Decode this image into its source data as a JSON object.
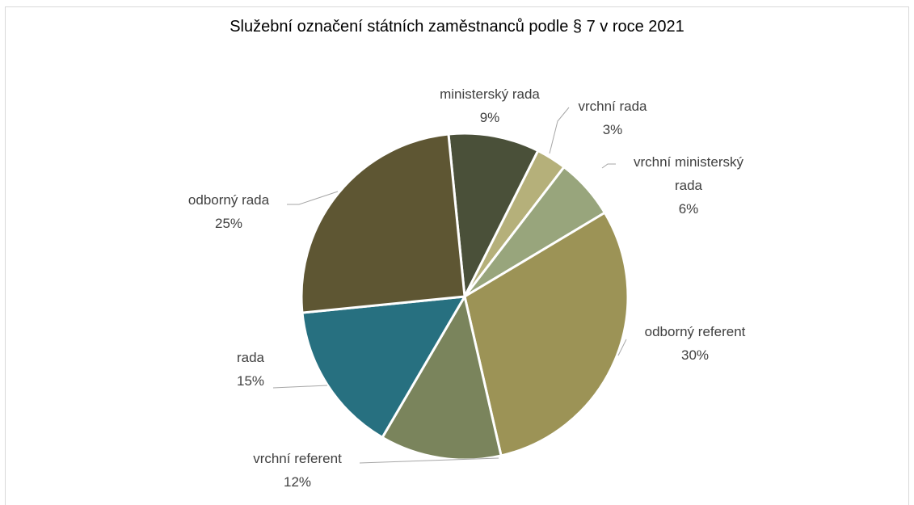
{
  "chart_data": {
    "type": "pie",
    "title": "Služební označení státních zaměstnanců podle § 7 v roce 2021",
    "categories": [
      "ministerský rada",
      "vrchní rada",
      "vrchní ministerský rada",
      "odborný referent",
      "vrchní referent",
      "rada",
      "odborný rada"
    ],
    "values": [
      9,
      3,
      6,
      30,
      12,
      15,
      25
    ],
    "value_labels": [
      "9%",
      "3%",
      "6%",
      "30%",
      "12%",
      "15%",
      "25%"
    ],
    "colors": [
      "#4a5039",
      "#b5b07a",
      "#98a57c",
      "#9c9356",
      "#7a845c",
      "#277080",
      "#5e5633"
    ]
  }
}
